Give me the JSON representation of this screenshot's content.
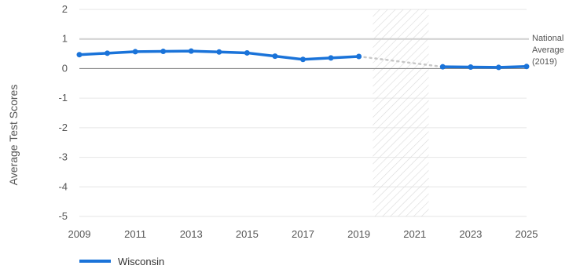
{
  "chart_data": {
    "type": "line",
    "ylabel": "Average Test Scores",
    "xlabel": "",
    "xlim": [
      2009,
      2025
    ],
    "ylim": [
      -5,
      2
    ],
    "x_ticks": [
      "2009",
      "2011",
      "2013",
      "2015",
      "2017",
      "2019",
      "2021",
      "2023",
      "2025"
    ],
    "y_ticks": [
      "2",
      "1",
      "0",
      "-1",
      "-2",
      "-3",
      "-4",
      "-5"
    ],
    "reference_line": {
      "label_lines": [
        "National",
        "Average",
        "(2019)"
      ],
      "value": 1
    },
    "gap_period": [
      2019.5,
      2021.5
    ],
    "series": [
      {
        "name": "Wisconsin",
        "color": "#1a73d9",
        "segments": [
          {
            "x": [
              2009,
              2010,
              2011,
              2012,
              2013,
              2014,
              2015,
              2016,
              2017,
              2018,
              2019
            ],
            "y": [
              0.47,
              0.52,
              0.57,
              0.58,
              0.59,
              0.56,
              0.53,
              0.42,
              0.31,
              0.36,
              0.41
            ]
          },
          {
            "x": [
              2022,
              2023,
              2024,
              2025
            ],
            "y": [
              0.06,
              0.05,
              0.04,
              0.07
            ]
          }
        ],
        "connector_style": "dotted"
      }
    ],
    "legend_position": "bottom-left",
    "grid": true
  }
}
